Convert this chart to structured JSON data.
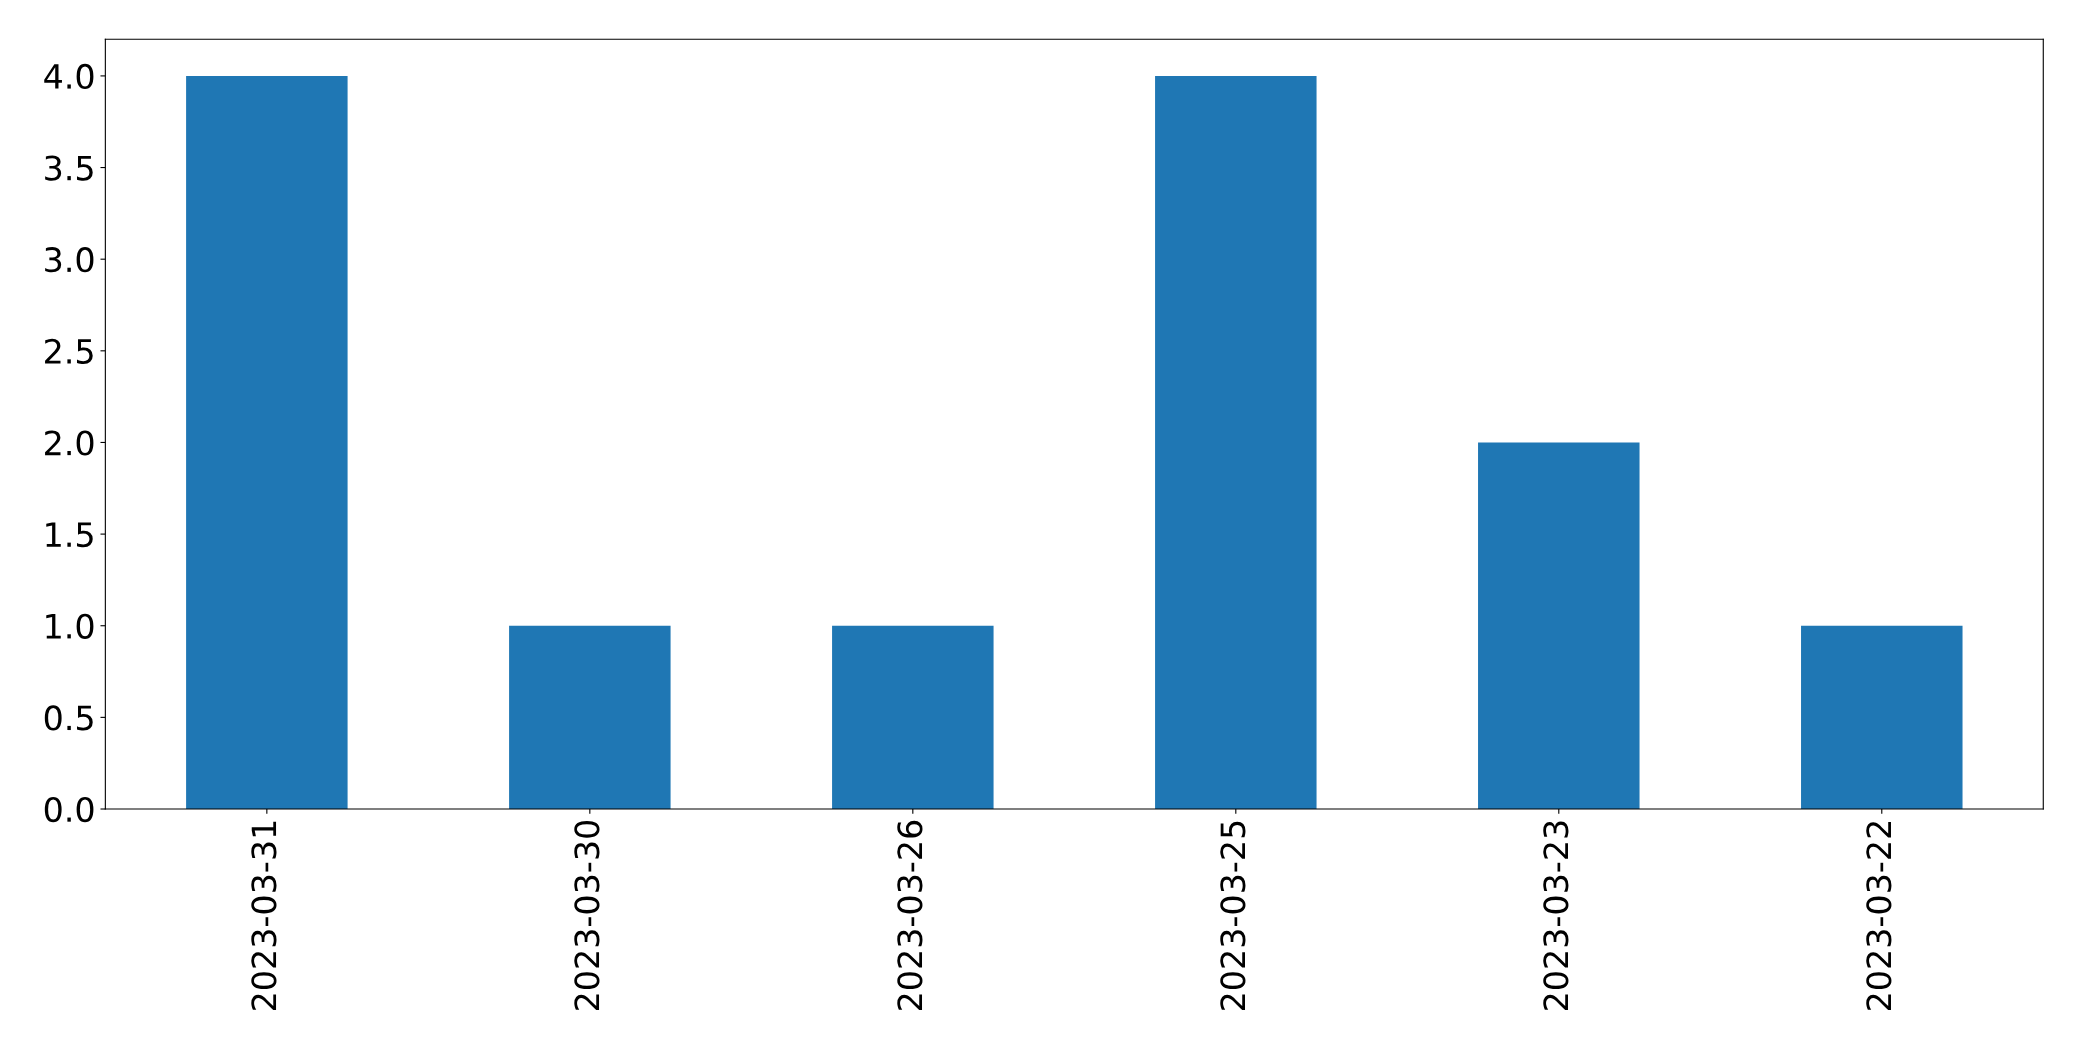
{
  "chart_data": {
    "type": "bar",
    "categories": [
      "2023-03-31",
      "2023-03-30",
      "2023-03-26",
      "2023-03-25",
      "2023-03-23",
      "2023-03-22"
    ],
    "values": [
      4,
      1,
      1,
      4,
      2,
      1
    ],
    "color": "#1f77b4",
    "ylim": [
      0,
      4.2
    ],
    "yticks": [
      {
        "value": 0,
        "label": "0.0"
      },
      {
        "value": 0.5,
        "label": "0.5"
      },
      {
        "value": 1,
        "label": "1.0"
      },
      {
        "value": 1.5,
        "label": "1.5"
      },
      {
        "value": 2,
        "label": "2.0"
      },
      {
        "value": 2.5,
        "label": "2.5"
      },
      {
        "value": 3,
        "label": "3.0"
      },
      {
        "value": 3.5,
        "label": "3.5"
      },
      {
        "value": 4,
        "label": "4.0"
      }
    ],
    "grid": false,
    "legend": false
  }
}
